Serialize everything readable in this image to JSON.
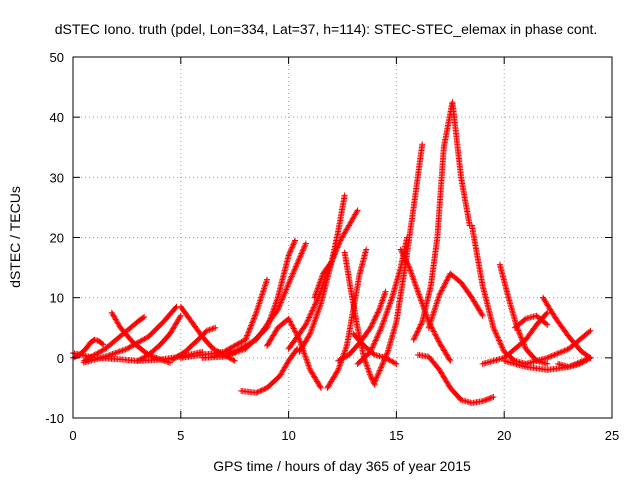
{
  "chart_data": {
    "type": "scatter",
    "title": "dSTEC Iono. truth (pdel, Lon=334, Lat=37, h=114): STEC-STEC_elemax in phase cont.",
    "xlabel": "GPS time / hours of day 365 of year 2015",
    "ylabel": "dSTEC  / TECUs",
    "xlim": [
      0,
      25
    ],
    "ylim": [
      -10,
      50
    ],
    "x_ticks": [
      "0",
      "5",
      "10",
      "15",
      "20",
      "25"
    ],
    "y_ticks": [
      "-10",
      "0",
      "10",
      "20",
      "30",
      "40",
      "50"
    ],
    "grid": true,
    "legend": "none",
    "marker": "plus",
    "color": "#ff0000",
    "series": [
      {
        "x": [
          0.0,
          0.3,
          0.6,
          0.8,
          1.0,
          1.2,
          1.4
        ],
        "y": [
          0.0,
          0.5,
          1.5,
          2.5,
          3.0,
          2.8,
          2.2
        ]
      },
      {
        "x": [
          0.0,
          1.0,
          2.0,
          3.0,
          4.0,
          5.0,
          6.0
        ],
        "y": [
          0.8,
          0.0,
          -0.2,
          -0.5,
          -0.3,
          0.2,
          1.0
        ]
      },
      {
        "x": [
          1.8,
          2.2,
          2.8,
          3.5,
          4.0,
          4.5
        ],
        "y": [
          7.5,
          5.0,
          2.5,
          0.5,
          -0.2,
          -0.8
        ]
      },
      {
        "x": [
          0.5,
          1.5,
          2.5,
          3.0,
          3.3
        ],
        "y": [
          -0.5,
          1.5,
          4.5,
          6.0,
          6.8
        ]
      },
      {
        "x": [
          0.5,
          1.5,
          2.5,
          3.5,
          4.2,
          4.8
        ],
        "y": [
          -0.8,
          0.2,
          1.5,
          3.5,
          6.0,
          8.5
        ]
      },
      {
        "x": [
          3.0,
          3.5,
          4.0,
          4.5,
          5.0
        ],
        "y": [
          -0.5,
          0.5,
          2.0,
          4.0,
          7.0
        ]
      },
      {
        "x": [
          5.0,
          5.4,
          6.0,
          6.5,
          7.0,
          7.5
        ],
        "y": [
          8.5,
          6.5,
          3.5,
          1.5,
          0.5,
          -0.5
        ]
      },
      {
        "x": [
          5.0,
          6.0,
          7.0,
          8.0,
          8.5,
          9.0
        ],
        "y": [
          0.0,
          0.5,
          1.0,
          3.0,
          7.5,
          13.0
        ]
      },
      {
        "x": [
          4.6,
          5.2,
          5.8,
          6.2,
          6.6
        ],
        "y": [
          -0.3,
          1.0,
          3.0,
          4.5,
          5.0
        ]
      },
      {
        "x": [
          6.0,
          7.0,
          8.0,
          9.0,
          9.5,
          10.0,
          10.3
        ],
        "y": [
          0.0,
          0.2,
          1.5,
          5.0,
          10.0,
          17.0,
          19.5
        ]
      },
      {
        "x": [
          6.5,
          7.5,
          8.5,
          9.5,
          10.2,
          10.8
        ],
        "y": [
          0.3,
          1.0,
          3.0,
          8.0,
          14.0,
          19.0
        ]
      },
      {
        "x": [
          7.8,
          8.5,
          9.0,
          9.6,
          10.0,
          10.4
        ],
        "y": [
          -5.5,
          -5.8,
          -5.0,
          -3.0,
          -0.5,
          1.5
        ]
      },
      {
        "x": [
          9.0,
          9.5,
          10.0,
          10.5,
          11.0,
          11.5
        ],
        "y": [
          2.0,
          5.0,
          6.5,
          3.0,
          -2.0,
          -5.0
        ]
      },
      {
        "x": [
          10.5,
          11.0,
          11.5,
          12.0,
          12.3,
          12.6
        ],
        "y": [
          1.0,
          4.0,
          9.0,
          16.0,
          21.0,
          27.0
        ]
      },
      {
        "x": [
          10.0,
          10.8,
          11.5,
          11.8,
          12.0
        ],
        "y": [
          1.5,
          5.5,
          11.0,
          14.5,
          16.0
        ]
      },
      {
        "x": [
          11.2,
          11.6,
          12.0,
          12.4,
          12.8,
          13.2
        ],
        "y": [
          10.0,
          14.0,
          16.0,
          19.5,
          22.0,
          24.5
        ]
      },
      {
        "x": [
          11.8,
          12.3,
          12.7,
          13.0,
          13.3,
          13.6
        ],
        "y": [
          -5.0,
          -2.0,
          2.0,
          8.0,
          14.0,
          18.0
        ]
      },
      {
        "x": [
          12.6,
          12.9,
          13.2,
          13.5,
          13.8,
          14.0
        ],
        "y": [
          17.5,
          11.0,
          5.0,
          0.0,
          -3.0,
          -4.5
        ]
      },
      {
        "x": [
          13.0,
          13.5,
          14.0,
          14.5,
          15.0
        ],
        "y": [
          4.0,
          2.0,
          0.5,
          0.0,
          -1.0
        ]
      },
      {
        "x": [
          13.2,
          13.8,
          14.3,
          14.8,
          15.2,
          15.5
        ],
        "y": [
          -1.0,
          1.0,
          5.0,
          10.0,
          15.0,
          20.0
        ]
      },
      {
        "x": [
          14.0,
          14.6,
          15.0,
          15.4,
          15.8,
          16.2
        ],
        "y": [
          -4.0,
          1.0,
          6.0,
          15.0,
          25.0,
          35.5
        ]
      },
      {
        "x": [
          12.3,
          12.8,
          13.3,
          13.8,
          14.2,
          14.5
        ],
        "y": [
          -0.5,
          0.5,
          2.5,
          5.0,
          8.0,
          11.0
        ]
      },
      {
        "x": [
          15.2,
          15.6,
          16.0,
          16.5,
          17.0,
          17.5
        ],
        "y": [
          18.0,
          15.0,
          11.0,
          6.0,
          2.5,
          -0.5
        ]
      },
      {
        "x": [
          15.8,
          16.2,
          16.6,
          16.9,
          17.2,
          17.6,
          18.0,
          18.4
        ],
        "y": [
          3.0,
          6.0,
          12.0,
          20.0,
          35.0,
          42.5,
          30.0,
          22.0
        ]
      },
      {
        "x": [
          16.5,
          17.0,
          17.5,
          18.0,
          18.5,
          19.0
        ],
        "y": [
          5.0,
          10.5,
          14.0,
          12.5,
          10.0,
          7.0
        ]
      },
      {
        "x": [
          16.0,
          16.5,
          17.0,
          17.5,
          18.0,
          18.5,
          19.0,
          19.5
        ],
        "y": [
          0.5,
          0.2,
          -2.0,
          -5.0,
          -7.0,
          -7.5,
          -7.2,
          -6.5
        ]
      },
      {
        "x": [
          18.5,
          19.0,
          19.5,
          20.0,
          20.5,
          21.0
        ],
        "y": [
          22.0,
          12.0,
          5.0,
          1.0,
          -0.5,
          -1.0
        ]
      },
      {
        "x": [
          19.8,
          20.2,
          20.6,
          21.0,
          21.5,
          22.0
        ],
        "y": [
          15.5,
          10.0,
          5.0,
          1.5,
          -0.5,
          -1.0
        ]
      },
      {
        "x": [
          19.0,
          20.0,
          21.0,
          21.5,
          22.0
        ],
        "y": [
          -1.0,
          0.0,
          3.0,
          5.5,
          7.5
        ]
      },
      {
        "x": [
          20.0,
          21.0,
          22.0,
          23.0,
          24.0
        ],
        "y": [
          -0.5,
          -1.5,
          -2.0,
          -1.5,
          0.0
        ]
      },
      {
        "x": [
          21.8,
          22.4,
          23.0,
          23.6,
          24.0
        ],
        "y": [
          10.0,
          6.5,
          3.5,
          1.0,
          0.0
        ]
      },
      {
        "x": [
          21.0,
          22.0,
          23.0,
          23.5,
          24.0
        ],
        "y": [
          -1.0,
          0.0,
          1.5,
          3.0,
          4.5
        ]
      },
      {
        "x": [
          20.5,
          21.0,
          21.5,
          22.0
        ],
        "y": [
          5.0,
          6.5,
          7.0,
          5.5
        ]
      },
      {
        "x": [
          22.5,
          23.0,
          23.5,
          24.0
        ],
        "y": [
          -1.0,
          -1.5,
          -1.0,
          0.0
        ]
      }
    ]
  }
}
